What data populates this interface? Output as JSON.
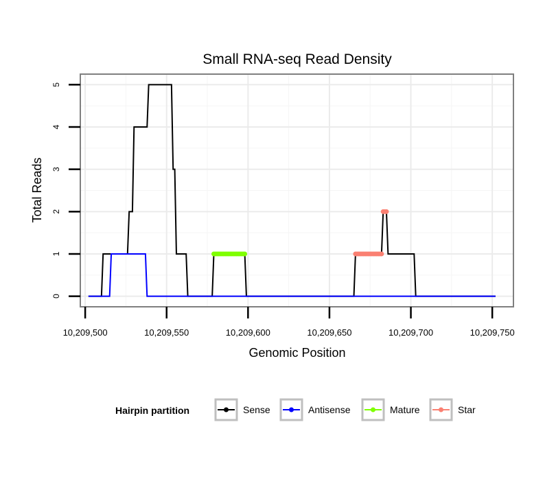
{
  "chart_data": {
    "type": "line",
    "title": "Small RNA-seq Read Density",
    "xlabel": "Genomic Position",
    "ylabel": "Total Reads",
    "xlim": [
      10209497,
      10209763
    ],
    "ylim": [
      -0.25,
      5.25
    ],
    "x_ticks": [
      10209500,
      10209550,
      10209600,
      10209650,
      10209700,
      10209750
    ],
    "x_tick_labels": [
      "10,209,500",
      "10,209,550",
      "10,209,600",
      "10,209,650",
      "10,209,700",
      "10,209,750"
    ],
    "y_ticks": [
      0,
      1,
      2,
      3,
      4,
      5
    ],
    "y_tick_labels": [
      "0",
      "1",
      "2",
      "3",
      "4",
      "5"
    ],
    "grid": true,
    "legend": {
      "title": "Hairpin partition",
      "position": "bottom",
      "entries": [
        "Sense",
        "Antisense",
        "Mature",
        "Star"
      ]
    },
    "series": [
      {
        "name": "Sense",
        "color": "#000000",
        "style": "line",
        "x": [
          10209502,
          10209510,
          10209511,
          10209526,
          10209527,
          10209529,
          10209530,
          10209538,
          10209539,
          10209545,
          10209546,
          10209553,
          10209554,
          10209555,
          10209556,
          10209562,
          10209563,
          10209578,
          10209579,
          10209598,
          10209599,
          10209665,
          10209666,
          10209682,
          10209683,
          10209685,
          10209686,
          10209702,
          10209703,
          10209752
        ],
        "y": [
          0,
          0,
          1,
          1,
          2,
          2,
          4,
          4,
          5,
          5,
          5,
          5,
          3,
          3,
          1,
          1,
          0,
          0,
          1,
          1,
          0,
          0,
          1,
          1,
          2,
          2,
          1,
          1,
          0,
          0
        ]
      },
      {
        "name": "Antisense",
        "color": "#0000ff",
        "style": "line",
        "x": [
          10209502,
          10209515,
          10209516,
          10209537,
          10209538,
          10209752
        ],
        "y": [
          0,
          0,
          1,
          1,
          0,
          0
        ]
      },
      {
        "name": "Mature",
        "color": "#7fff00",
        "style": "points",
        "x": [
          10209579,
          10209580,
          10209581,
          10209582,
          10209583,
          10209584,
          10209585,
          10209586,
          10209587,
          10209588,
          10209589,
          10209590,
          10209591,
          10209592,
          10209593,
          10209594,
          10209595,
          10209596,
          10209597,
          10209598
        ],
        "y": [
          1,
          1,
          1,
          1,
          1,
          1,
          1,
          1,
          1,
          1,
          1,
          1,
          1,
          1,
          1,
          1,
          1,
          1,
          1,
          1
        ]
      },
      {
        "name": "Star",
        "color": "#fa8072",
        "style": "points",
        "x": [
          10209666,
          10209667,
          10209668,
          10209669,
          10209670,
          10209671,
          10209672,
          10209673,
          10209674,
          10209675,
          10209676,
          10209677,
          10209678,
          10209679,
          10209680,
          10209681,
          10209682,
          10209683,
          10209684,
          10209685
        ],
        "y": [
          1,
          1,
          1,
          1,
          1,
          1,
          1,
          1,
          1,
          1,
          1,
          1,
          1,
          1,
          1,
          1,
          1,
          2,
          2,
          2
        ]
      }
    ]
  }
}
